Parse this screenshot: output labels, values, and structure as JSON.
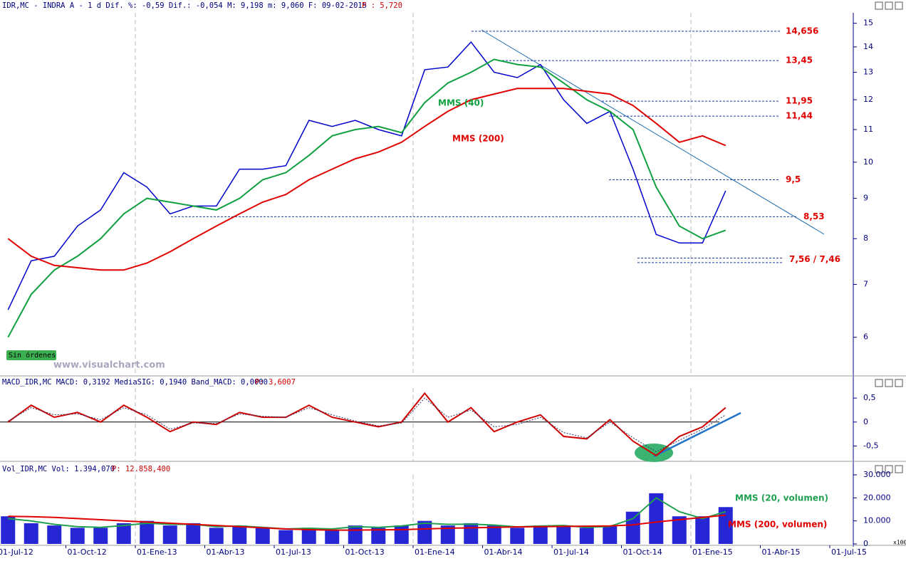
{
  "chart_data": [
    {
      "type": "line",
      "title": "IDR,MC - INDRA A - 1 d Dif. %: -0,59 Dif.: -0,054 M: 9,198 m: 9,060 F: 09-02-2015",
      "subtitle": "P : 5,720",
      "categories": [
        "01-Jul-12",
        null,
        null,
        "01-Oct-12",
        null,
        null,
        "01-Ene-13",
        null,
        null,
        "01-Abr-13",
        null,
        null,
        "01-Jul-13",
        null,
        null,
        "01-Oct-13",
        null,
        null,
        "01-Ene-14",
        null,
        null,
        "01-Abr-14",
        null,
        null,
        "01-Jul-14",
        null,
        null,
        "01-Oct-14",
        null,
        null,
        "01-Ene-15",
        null,
        null,
        "01-Abr-15",
        null,
        null,
        "01-Jul-15"
      ],
      "log_scale": true,
      "ylim": [
        5.45,
        15.4
      ],
      "yticks": [
        15,
        14,
        13,
        12,
        11,
        10,
        9,
        8,
        7,
        6
      ],
      "series": [
        {
          "color": "#0000cc",
          "values": [
            6.5,
            7.5,
            7.6,
            8.3,
            8.7,
            9.7,
            9.3,
            8.6,
            8.8,
            8.8,
            9.8,
            9.8,
            9.9,
            11.3,
            11.1,
            11.3,
            11.0,
            10.8,
            13.1,
            13.2,
            14.2,
            13.0,
            12.8,
            13.3,
            12.0,
            11.2,
            11.6,
            9.8,
            8.1,
            7.9,
            7.9,
            9.2,
            null,
            null,
            null,
            null,
            null
          ]
        },
        {
          "name": "MMS (40)",
          "color": "#10a040",
          "values": [
            6.0,
            6.8,
            7.3,
            7.6,
            8.0,
            8.6,
            9.0,
            8.9,
            8.8,
            8.7,
            9.0,
            9.5,
            9.7,
            10.2,
            10.8,
            11.0,
            11.1,
            10.9,
            11.9,
            12.6,
            13.0,
            13.5,
            13.3,
            13.2,
            12.6,
            12.0,
            11.6,
            11.0,
            9.3,
            8.3,
            8.0,
            8.2,
            null,
            null,
            null,
            null,
            null
          ]
        },
        {
          "name": "MMS (200)",
          "color": "#e00000",
          "values": [
            8.0,
            7.6,
            7.4,
            7.35,
            7.3,
            7.3,
            7.45,
            7.7,
            8.0,
            8.3,
            8.6,
            8.9,
            9.1,
            9.5,
            9.8,
            10.1,
            10.3,
            10.6,
            11.1,
            11.6,
            12.0,
            12.2,
            12.4,
            12.4,
            12.4,
            12.3,
            12.2,
            11.8,
            11.2,
            10.6,
            10.8,
            10.5,
            null,
            null,
            null,
            null,
            null
          ]
        }
      ],
      "levels": [
        {
          "values": [
            14.656
          ],
          "label": "14,656"
        },
        {
          "values": [
            13.45
          ],
          "label": "13,45"
        },
        {
          "values": [
            11.95
          ],
          "label": "11,95"
        },
        {
          "values": [
            11.44
          ],
          "label": "11,44"
        },
        {
          "values": [
            9.5
          ],
          "label": "9,5"
        },
        {
          "values": [
            8.53
          ],
          "label": "8,53"
        },
        {
          "values": [
            7.56,
            7.46
          ],
          "label": "7,56 / 7,46"
        }
      ],
      "annotations": [
        "Sin órdenes",
        "www.visualchart.com"
      ]
    },
    {
      "type": "line",
      "title": "MACD_IDR,MC MACD: 0,3192 MediaSIG: 0,1940 Band_MACD: 0,0000",
      "subtitle": "P: 3,6007",
      "ylim": [
        -0.82,
        0.71
      ],
      "yticks": [
        {
          "value": 0.5,
          "label": "0,5"
        },
        0,
        {
          "value": -0.5,
          "label": "-0,5"
        }
      ],
      "zero_line": true,
      "series": [
        {
          "color": "#d00000",
          "values": [
            0.0,
            0.35,
            0.1,
            0.2,
            0.0,
            0.35,
            0.1,
            -0.2,
            0.0,
            -0.05,
            0.2,
            0.1,
            0.1,
            0.35,
            0.1,
            0.0,
            -0.1,
            0.0,
            0.6,
            0.0,
            0.3,
            -0.2,
            0.0,
            0.15,
            -0.3,
            -0.35,
            0.05,
            -0.4,
            -0.7,
            -0.3,
            -0.1,
            0.3,
            null,
            null,
            null,
            null,
            null
          ]
        },
        {
          "color": "#333366",
          "dashed": true,
          "values": [
            0.02,
            0.3,
            0.15,
            0.17,
            0.05,
            0.3,
            0.15,
            -0.15,
            -0.02,
            -0.03,
            0.17,
            0.12,
            0.1,
            0.3,
            0.15,
            0.02,
            -0.08,
            -0.02,
            0.5,
            0.1,
            0.25,
            -0.1,
            -0.05,
            0.1,
            -0.22,
            -0.33,
            0.0,
            -0.33,
            -0.62,
            -0.38,
            -0.15,
            0.15,
            null,
            null,
            null,
            null,
            null
          ]
        }
      ]
    },
    {
      "type": "bar",
      "title": "Vol_IDR,MC Vol: 1.394,070",
      "subtitle": "P: 12.858,400",
      "unit": "x100",
      "ylim": [
        0,
        30000
      ],
      "yticks": [
        {
          "value": 30000,
          "label": "30.000"
        },
        {
          "value": 20000,
          "label": "20.000"
        },
        {
          "value": 10000,
          "label": "10.000"
        },
        0
      ],
      "series": [
        {
          "color": "#0000cc",
          "values": [
            12000,
            9000,
            8000,
            7000,
            7000,
            9000,
            10000,
            8000,
            9000,
            7000,
            8000,
            7000,
            6000,
            7000,
            6000,
            8000,
            7000,
            8000,
            10000,
            8000,
            9000,
            8000,
            7000,
            8000,
            8000,
            7000,
            8000,
            14000,
            22000,
            12000,
            12000,
            16000,
            null,
            null,
            null,
            null,
            null
          ]
        },
        {
          "name": "MMS (20, volumen)",
          "type": "line",
          "color": "#20a050",
          "values": [
            11000,
            10000,
            8500,
            7500,
            7200,
            8000,
            9000,
            8500,
            8500,
            7500,
            7800,
            7200,
            6500,
            6800,
            6500,
            7500,
            7200,
            7800,
            9000,
            8500,
            8600,
            8200,
            7400,
            7800,
            8000,
            7200,
            7600,
            11000,
            20000,
            14000,
            11000,
            14000,
            null,
            null,
            null,
            null,
            null
          ]
        },
        {
          "name": "MMS (200, volumen)",
          "type": "line",
          "color": "#e00000",
          "values": [
            12000,
            11800,
            11500,
            11000,
            10500,
            10000,
            9500,
            9000,
            8500,
            8000,
            7500,
            7000,
            6500,
            6200,
            6000,
            6000,
            6100,
            6200,
            6500,
            6800,
            7000,
            7200,
            7400,
            7500,
            7600,
            7700,
            7800,
            8300,
            9500,
            10500,
            11500,
            12500,
            null,
            null,
            null,
            null,
            null
          ]
        }
      ]
    }
  ]
}
